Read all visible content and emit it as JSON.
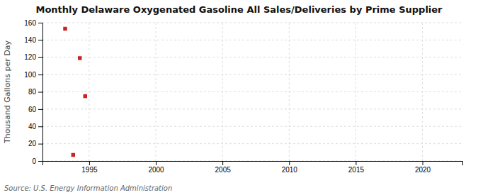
{
  "chart_data": {
    "type": "scatter",
    "title": "Monthly Delaware Oxygenated Gasoline All Sales/Deliveries by Prime Supplier",
    "ylabel": "Thousand Gallons per Day",
    "source": "Source: U.S. Energy Information Administration",
    "x": [
      1993.2,
      1994.3,
      1994.7,
      1993.8
    ],
    "values": [
      153,
      119,
      75,
      7
    ],
    "color": "#cc2222",
    "marker": "square",
    "xlim": [
      1991.5,
      2023
    ],
    "ylim": [
      0,
      160
    ],
    "xticks": [
      1995,
      2000,
      2005,
      2010,
      2015,
      2020
    ],
    "yticks": [
      0,
      20,
      40,
      60,
      80,
      100,
      120,
      140,
      160
    ],
    "grid": true
  }
}
